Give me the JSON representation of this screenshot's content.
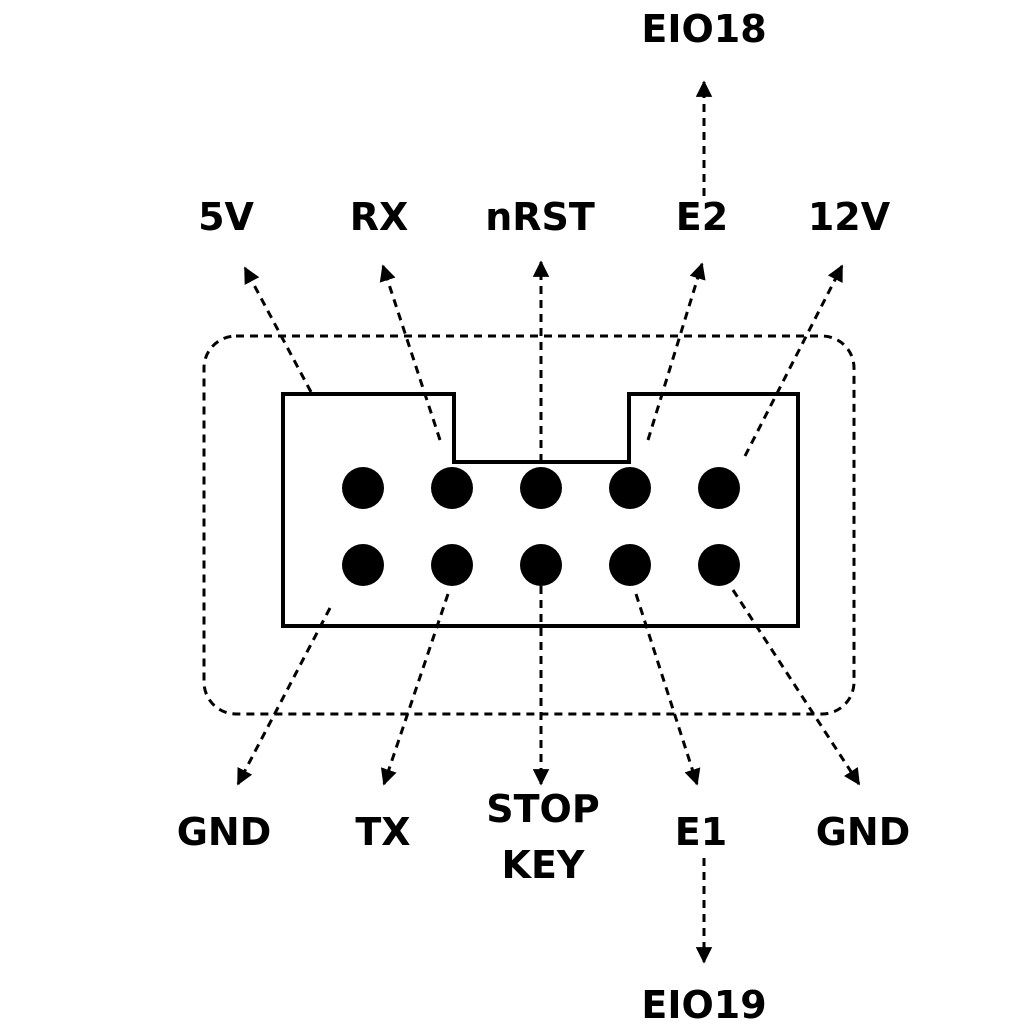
{
  "diagram": {
    "top_labels": [
      "5V",
      "RX",
      "nRST",
      "E2",
      "12V"
    ],
    "bottom_labels": [
      "GND",
      "TX",
      "STOP",
      "KEY",
      "E1",
      "GND"
    ],
    "extra_top": "EIO18",
    "extra_bottom": "EIO19"
  }
}
